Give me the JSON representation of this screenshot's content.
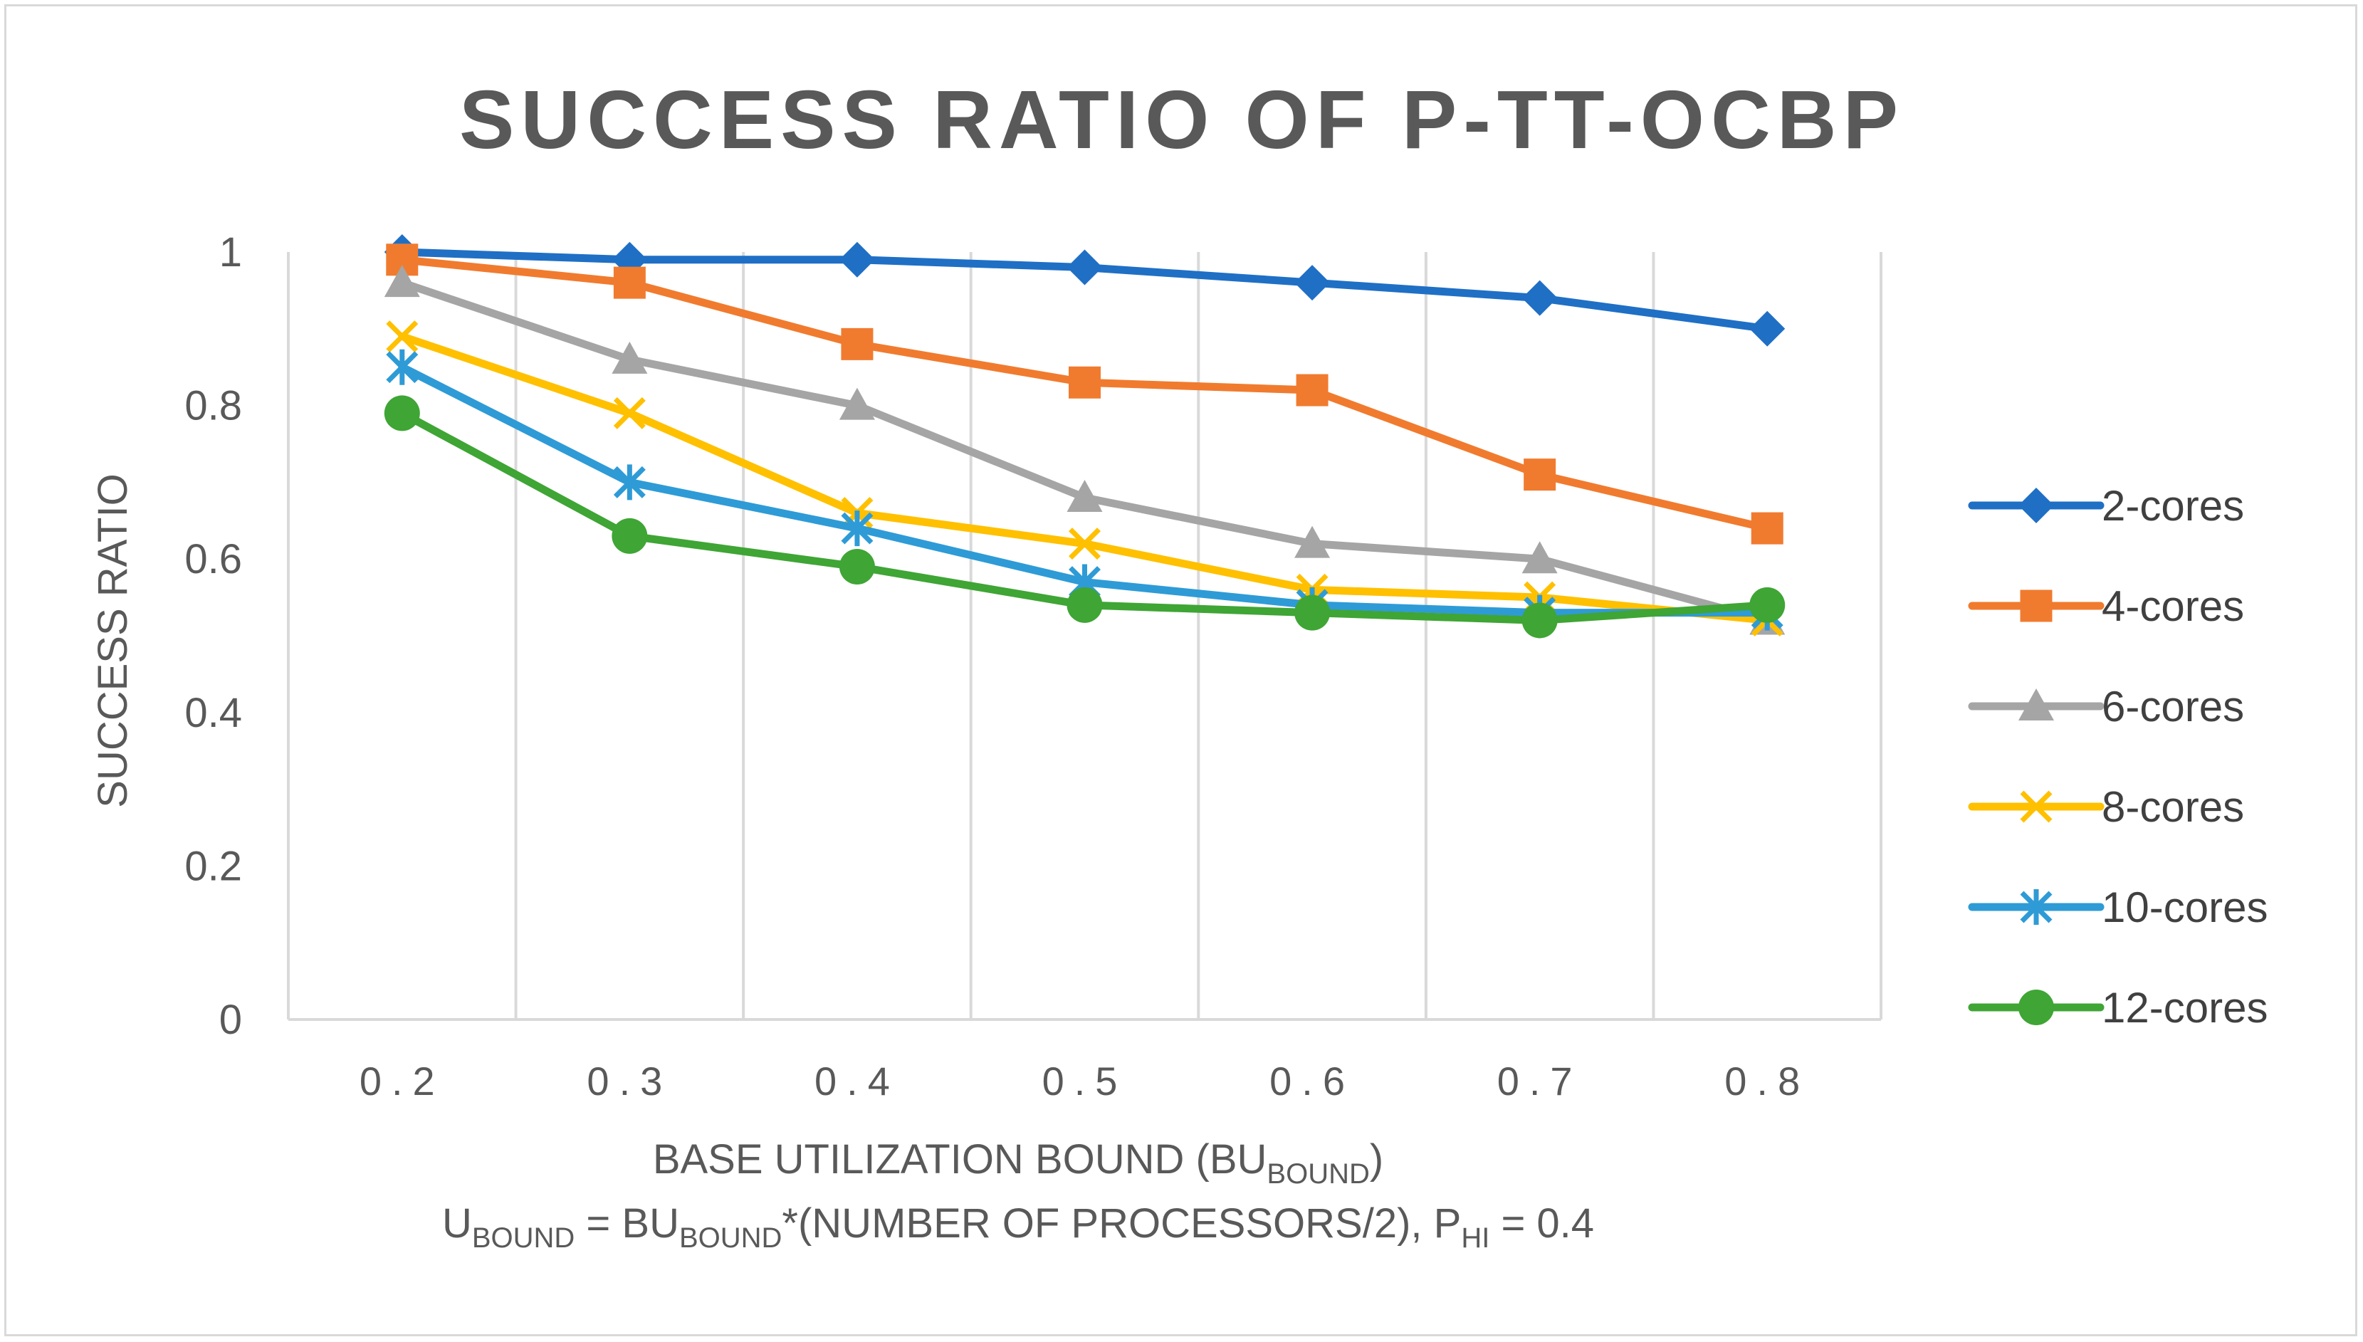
{
  "chart_data": {
    "type": "line",
    "title": "SUCCESS RATIO OF P-TT-OCBP",
    "ylabel": "SUCCESS RATIO",
    "xlabel": {
      "line1_main": "BASE UTILIZATION BOUND (BU",
      "line1_sub": "BOUND",
      "line1_end": ")",
      "line2_parts": [
        {
          "text": "U",
          "sub": false
        },
        {
          "text": "BOUND",
          "sub": true
        },
        {
          "text": " = BU",
          "sub": false
        },
        {
          "text": "BOUND",
          "sub": true
        },
        {
          "text": "*(NUMBER OF PROCESSORS/2), P",
          "sub": false
        },
        {
          "text": "HI",
          "sub": true
        },
        {
          "text": " = 0.4",
          "sub": false
        }
      ]
    },
    "categories": [
      "0.2",
      "0.3",
      "0.4",
      "0.5",
      "0.6",
      "0.7",
      "0.8"
    ],
    "ylim": [
      0,
      1
    ],
    "yticks": [
      {
        "value": 0,
        "label": "0"
      },
      {
        "value": 0.2,
        "label": "0.2"
      },
      {
        "value": 0.4,
        "label": "0.4"
      },
      {
        "value": 0.6,
        "label": "0.6"
      },
      {
        "value": 0.8,
        "label": "0.8"
      },
      {
        "value": 1,
        "label": "1"
      }
    ],
    "grid": "vertical",
    "legend_position": "right",
    "series": [
      {
        "name": "2-cores",
        "color": "#1f6fc5",
        "marker": "diamond",
        "values": [
          1.0,
          0.99,
          0.99,
          0.98,
          0.96,
          0.94,
          0.9
        ]
      },
      {
        "name": "4-cores",
        "color": "#f07b2f",
        "marker": "square",
        "values": [
          0.99,
          0.96,
          0.88,
          0.83,
          0.82,
          0.71,
          0.64
        ]
      },
      {
        "name": "6-cores",
        "color": "#a5a5a5",
        "marker": "triangle",
        "values": [
          0.96,
          0.86,
          0.8,
          0.68,
          0.62,
          0.6,
          0.52
        ]
      },
      {
        "name": "8-cores",
        "color": "#ffc000",
        "marker": "x",
        "values": [
          0.89,
          0.79,
          0.66,
          0.62,
          0.56,
          0.55,
          0.52
        ]
      },
      {
        "name": "10-cores",
        "color": "#2e9bd6",
        "marker": "star",
        "values": [
          0.85,
          0.7,
          0.64,
          0.57,
          0.54,
          0.53,
          0.53
        ]
      },
      {
        "name": "12-cores",
        "color": "#3fa535",
        "marker": "circle",
        "values": [
          0.79,
          0.63,
          0.59,
          0.54,
          0.53,
          0.52,
          0.54
        ]
      }
    ]
  }
}
